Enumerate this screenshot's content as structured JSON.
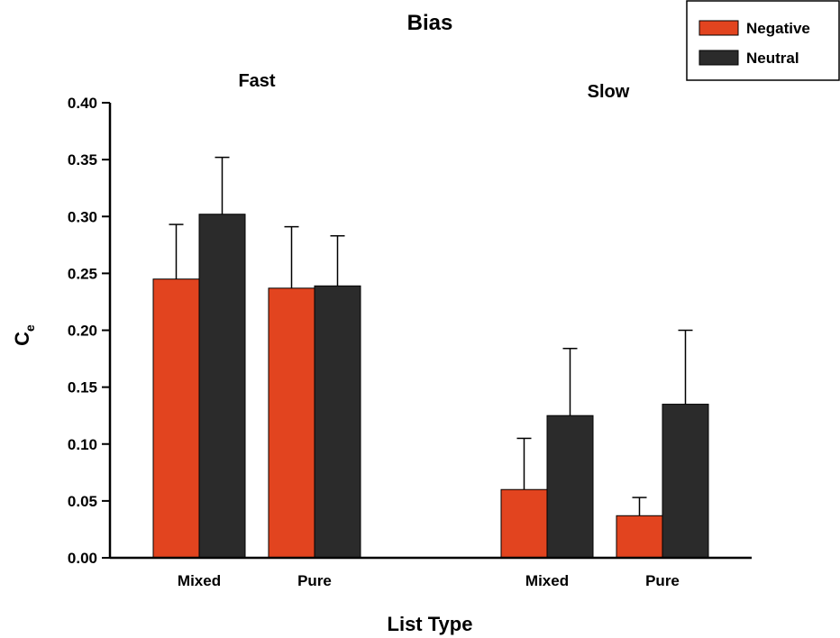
{
  "chart_data": {
    "type": "bar",
    "title": "Bias",
    "xlabel": "List Type",
    "ylabel": "C",
    "ylabel_subscript": "e",
    "ylim": [
      0,
      0.4
    ],
    "yticks": [
      "0.00",
      "0.05",
      "0.10",
      "0.15",
      "0.20",
      "0.25",
      "0.30",
      "0.35",
      "0.40"
    ],
    "legend_position": "top-right",
    "groups": [
      {
        "label": "Fast",
        "categories": [
          {
            "label": "Mixed",
            "values": [
              0.245,
              0.302
            ],
            "errors": [
              0.048,
              0.05
            ]
          },
          {
            "label": "Pure",
            "values": [
              0.237,
              0.239
            ],
            "errors": [
              0.054,
              0.044
            ]
          }
        ]
      },
      {
        "label": "Slow",
        "categories": [
          {
            "label": "Mixed",
            "values": [
              0.06,
              0.125
            ],
            "errors": [
              0.045,
              0.059
            ]
          },
          {
            "label": "Pure",
            "values": [
              0.037,
              0.135
            ],
            "errors": [
              0.016,
              0.065
            ]
          }
        ]
      }
    ],
    "series": [
      {
        "name": "Negative",
        "color": "#e2441f"
      },
      {
        "name": "Neutral",
        "color": "#2b2b2b"
      }
    ]
  }
}
